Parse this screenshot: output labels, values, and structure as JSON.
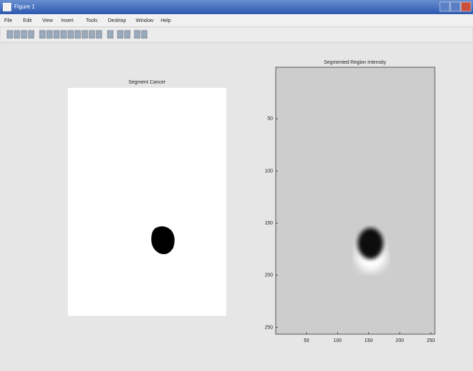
{
  "window": {
    "title": "Figure 1"
  },
  "menu": [
    "File",
    "Edit",
    "View",
    "Insert",
    "Tools",
    "Desktop",
    "Window",
    "Help"
  ],
  "plots": [
    {
      "title": "Segment Cancer"
    },
    {
      "title": "Segmented Region Intensity",
      "xlim": [
        0.5,
        256.5
      ],
      "ylim": [
        0.5,
        256.5
      ],
      "xticks": [
        50,
        100,
        150,
        200,
        250
      ],
      "yticks": [
        50,
        100,
        150,
        200,
        250
      ]
    }
  ]
}
